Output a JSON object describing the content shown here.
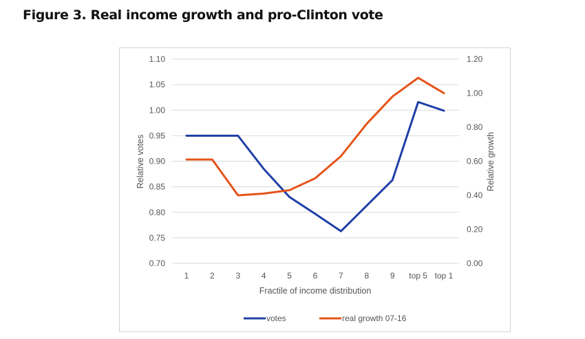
{
  "title": "Figure 3. Real income growth and pro-Clinton vote",
  "chart_data": {
    "type": "line",
    "title": "Figure 3. Real income growth and pro-Clinton vote",
    "xlabel": "Fractile of income distribution",
    "ylabel": "Relative votes",
    "y2label": "Relative growth",
    "categories": [
      "1",
      "2",
      "3",
      "4",
      "5",
      "6",
      "7",
      "8",
      "9",
      "top 5",
      "top 1"
    ],
    "ylim": [
      0.7,
      1.1
    ],
    "y2lim": [
      0.0,
      1.2
    ],
    "yticks": [
      "0.70",
      "0.75",
      "0.80",
      "0.85",
      "0.90",
      "0.95",
      "1.00",
      "1.05",
      "1.10"
    ],
    "y2ticks": [
      "0.00",
      "0.20",
      "0.40",
      "0.60",
      "0.80",
      "1.00",
      "1.20"
    ],
    "grid": true,
    "legend_position": "bottom",
    "series": [
      {
        "name": "votes",
        "axis": "left",
        "color": "#1f3fa6",
        "values": [
          0.95,
          0.95,
          0.95,
          0.885,
          0.83,
          0.797,
          0.763,
          0.813,
          0.863,
          1.016,
          0.999
        ]
      },
      {
        "name": "real growth 07-16",
        "axis": "right",
        "color": "#e5531a",
        "values": [
          0.61,
          0.61,
          0.4,
          0.41,
          0.43,
          0.5,
          0.63,
          0.82,
          0.98,
          1.09,
          1.0
        ]
      }
    ]
  }
}
